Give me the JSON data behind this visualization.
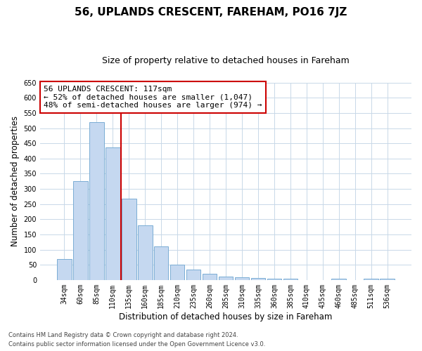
{
  "title": "56, UPLANDS CRESCENT, FAREHAM, PO16 7JZ",
  "subtitle": "Size of property relative to detached houses in Fareham",
  "xlabel": "Distribution of detached houses by size in Fareham",
  "ylabel": "Number of detached properties",
  "categories": [
    "34sqm",
    "60sqm",
    "85sqm",
    "110sqm",
    "135sqm",
    "160sqm",
    "185sqm",
    "210sqm",
    "235sqm",
    "260sqm",
    "285sqm",
    "310sqm",
    "335sqm",
    "360sqm",
    "385sqm",
    "410sqm",
    "435sqm",
    "460sqm",
    "485sqm",
    "511sqm",
    "536sqm"
  ],
  "values": [
    70,
    325,
    520,
    437,
    268,
    180,
    110,
    50,
    34,
    20,
    12,
    10,
    6,
    4,
    4,
    0,
    0,
    4,
    0,
    4,
    4
  ],
  "bar_color": "#c5d8f0",
  "bar_edge_color": "#7aadd4",
  "vline_pos": 3.5,
  "vline_color": "#cc0000",
  "annotation_text": "56 UPLANDS CRESCENT: 117sqm\n← 52% of detached houses are smaller (1,047)\n48% of semi-detached houses are larger (974) →",
  "annotation_box_color": "#ffffff",
  "annotation_box_edge_color": "#cc0000",
  "ylim": [
    0,
    650
  ],
  "yticks": [
    0,
    50,
    100,
    150,
    200,
    250,
    300,
    350,
    400,
    450,
    500,
    550,
    600,
    650
  ],
  "footer_line1": "Contains HM Land Registry data © Crown copyright and database right 2024.",
  "footer_line2": "Contains public sector information licensed under the Open Government Licence v3.0.",
  "bg_color": "#ffffff",
  "grid_color": "#c8d8e8",
  "title_fontsize": 11,
  "subtitle_fontsize": 9,
  "tick_fontsize": 7,
  "label_fontsize": 8.5,
  "footer_fontsize": 6,
  "ann_fontsize": 8
}
